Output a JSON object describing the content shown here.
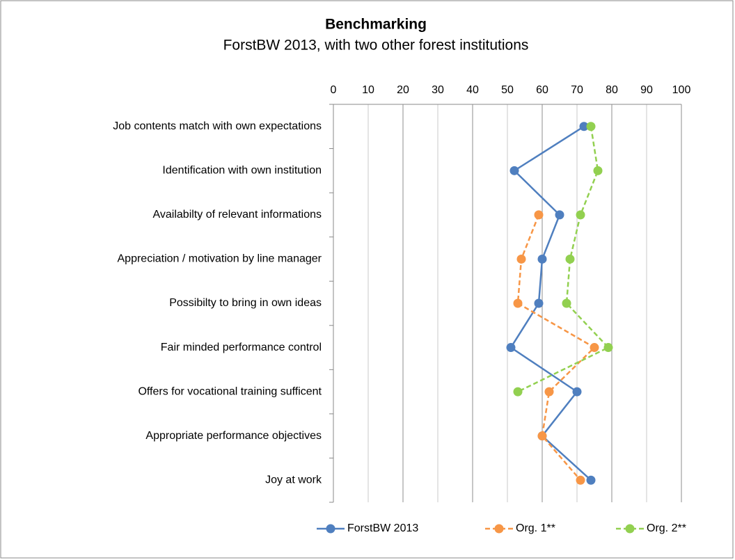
{
  "chart_data": {
    "type": "line",
    "orientation": "horizontal",
    "title": "Benchmarking",
    "subtitle": "ForstBW 2013, with two other forest institutions",
    "categories": [
      "Job contents match with own expectations",
      "Identification with own institution",
      "Availabilty of relevant informations",
      "Appreciation / motivation by line manager",
      "Possibilty to bring in own ideas",
      "Fair minded performance control",
      "Offers for vocational training sufficent",
      "Appropriate performance objectives",
      "Joy at work"
    ],
    "series": [
      {
        "name": "ForstBW 2013",
        "color": "#4f7fbf",
        "dashed": false,
        "values": [
          72,
          52,
          65,
          60,
          59,
          51,
          70,
          60,
          74
        ]
      },
      {
        "name": "Org. 1**",
        "color": "#f79646",
        "dashed": true,
        "values": [
          null,
          null,
          59,
          54,
          53,
          75,
          62,
          60,
          71
        ]
      },
      {
        "name": "Org. 2**",
        "color": "#92d050",
        "dashed": true,
        "values": [
          74,
          76,
          71,
          68,
          67,
          79,
          53,
          null,
          null
        ]
      }
    ],
    "xlim": [
      0,
      100
    ],
    "xticks": [
      0,
      10,
      20,
      30,
      40,
      50,
      60,
      70,
      80,
      90,
      100
    ],
    "grid": true,
    "legend": "bottom"
  }
}
